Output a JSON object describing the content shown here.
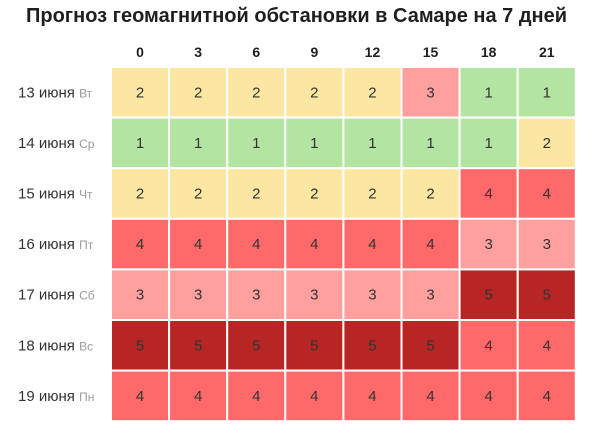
{
  "chart_data": {
    "type": "heatmap",
    "title": "Прогноз геомагнитной обстановки в Самаре на 7 дней",
    "columns": [
      "0",
      "3",
      "6",
      "9",
      "12",
      "15",
      "18",
      "21"
    ],
    "rows": [
      {
        "date": "13 июня",
        "weekday": "Вт",
        "values": [
          2,
          2,
          2,
          2,
          2,
          3,
          1,
          1
        ]
      },
      {
        "date": "14 июня",
        "weekday": "Ср",
        "values": [
          1,
          1,
          1,
          1,
          1,
          1,
          1,
          2
        ]
      },
      {
        "date": "15 июня",
        "weekday": "Чт",
        "values": [
          2,
          2,
          2,
          2,
          2,
          2,
          4,
          4
        ]
      },
      {
        "date": "16 июня",
        "weekday": "Пт",
        "values": [
          4,
          4,
          4,
          4,
          4,
          4,
          3,
          3
        ]
      },
      {
        "date": "17 июня",
        "weekday": "Сб",
        "values": [
          3,
          3,
          3,
          3,
          3,
          3,
          5,
          5
        ]
      },
      {
        "date": "18 июня",
        "weekday": "Вс",
        "values": [
          5,
          5,
          5,
          5,
          5,
          5,
          4,
          4
        ]
      },
      {
        "date": "19 июня",
        "weekday": "Пн",
        "values": [
          4,
          4,
          4,
          4,
          4,
          4,
          4,
          4
        ]
      }
    ],
    "colors": {
      "1": "#b3e4a1",
      "2": "#fbe7a2",
      "3": "#ffa09f",
      "4": "#ff6969",
      "5": "#b82525"
    }
  }
}
